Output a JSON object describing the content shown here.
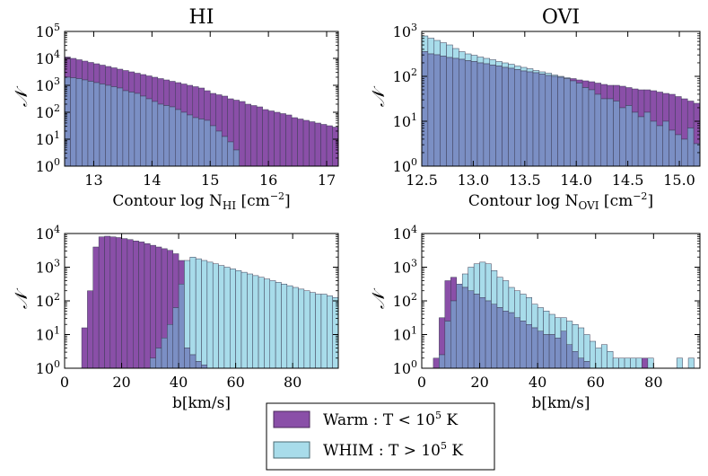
{
  "figure": {
    "legend": {
      "entries": [
        {
          "name": "Warm",
          "label": "Warm : T < 10",
          "exp": "5",
          "unit": " K",
          "color": "#8a4fa8",
          "stroke": "#4a2a5a"
        },
        {
          "name": "WHIM",
          "label": "WHIM : T > 10",
          "exp": "5",
          "unit": " K",
          "color": "#a8dcea",
          "stroke": "#4a6a72"
        }
      ]
    },
    "overlap_color": "#7b8fc4"
  },
  "chart_data": [
    {
      "id": "hi-column",
      "type": "bar",
      "title": "HI",
      "xlabel": "Contour log N",
      "xlabel_sub": "HI",
      "xlabel_unit": " [cm",
      "xlabel_unit_exp": "−2",
      "xlabel_close": "]",
      "ylabel": "𝒩",
      "yscale": "log",
      "xlim": [
        12.5,
        17.2
      ],
      "ylim_exp": [
        0,
        5
      ],
      "xticks": [
        13,
        14,
        15,
        16,
        17
      ],
      "ytick_exps": [
        0,
        1,
        2,
        3,
        4,
        5
      ],
      "bins": {
        "start": 12.5,
        "width": 0.1
      },
      "series": [
        {
          "name": "Warm",
          "log_values": [
            4.05,
            4.0,
            3.95,
            3.9,
            3.85,
            3.8,
            3.75,
            3.7,
            3.65,
            3.6,
            3.55,
            3.5,
            3.45,
            3.4,
            3.35,
            3.3,
            3.25,
            3.2,
            3.15,
            3.1,
            3.05,
            3.0,
            2.95,
            2.9,
            2.8,
            2.7,
            2.65,
            2.6,
            2.5,
            2.45,
            2.4,
            2.3,
            2.25,
            2.2,
            2.1,
            2.05,
            2.0,
            1.95,
            1.9,
            1.8,
            1.75,
            1.7,
            1.65,
            1.6,
            1.55,
            1.5,
            1.45
          ]
        },
        {
          "name": "WHIM",
          "log_values": [
            3.3,
            3.28,
            3.25,
            3.2,
            3.15,
            3.1,
            3.05,
            3.0,
            2.95,
            2.9,
            2.8,
            2.75,
            2.7,
            2.6,
            2.5,
            2.4,
            2.3,
            2.25,
            2.2,
            2.1,
            2.0,
            1.9,
            1.8,
            1.75,
            1.7,
            1.5,
            1.3,
            1.1,
            0.9,
            0.6,
            0.0,
            0.0,
            0.0,
            0.0,
            0.0,
            0.0,
            0.0,
            0.0,
            0.0,
            0.0,
            0.0,
            0.0,
            0.0,
            0.0,
            0.0,
            0.0,
            0.0
          ]
        }
      ]
    },
    {
      "id": "ovi-column",
      "type": "bar",
      "title": "OVI",
      "xlabel": "Contour log N",
      "xlabel_sub": "OVI",
      "xlabel_unit": " [cm",
      "xlabel_unit_exp": "−2",
      "xlabel_close": "]",
      "ylabel": "𝒩",
      "yscale": "log",
      "xlim": [
        12.5,
        15.2
      ],
      "ylim_exp": [
        0,
        3
      ],
      "xticks": [
        "12.5",
        "13.0",
        "13.5",
        "14.0",
        "14.5",
        "15.0"
      ],
      "ytick_exps": [
        0,
        1,
        2,
        3
      ],
      "bins": {
        "start": 12.5,
        "width": 0.06
      },
      "series": [
        {
          "name": "Warm",
          "log_values": [
            2.55,
            2.5,
            2.48,
            2.45,
            2.42,
            2.4,
            2.38,
            2.35,
            2.33,
            2.3,
            2.28,
            2.25,
            2.23,
            2.2,
            2.18,
            2.15,
            2.12,
            2.1,
            2.08,
            2.05,
            2.02,
            2.0,
            1.98,
            1.95,
            1.95,
            1.92,
            1.9,
            1.88,
            1.85,
            1.82,
            1.8,
            1.8,
            1.78,
            1.75,
            1.72,
            1.7,
            1.7,
            1.68,
            1.65,
            1.62,
            1.6,
            1.55,
            1.5,
            1.45,
            1.4,
            1.35
          ]
        },
        {
          "name": "WHIM",
          "log_values": [
            2.9,
            2.85,
            2.8,
            2.75,
            2.7,
            2.62,
            2.55,
            2.5,
            2.47,
            2.43,
            2.4,
            2.37,
            2.33,
            2.3,
            2.27,
            2.23,
            2.2,
            2.17,
            2.13,
            2.1,
            2.07,
            2.03,
            2.0,
            1.97,
            1.9,
            1.85,
            1.75,
            1.7,
            1.6,
            1.5,
            1.5,
            1.45,
            1.3,
            1.35,
            1.2,
            1.1,
            1.2,
            1.0,
            0.9,
            1.0,
            0.8,
            0.7,
            0.6,
            0.85,
            0.5,
            0.3
          ]
        }
      ]
    },
    {
      "id": "hi-b",
      "type": "bar",
      "title": "",
      "xlabel": "b[km/s]",
      "ylabel": "𝒩",
      "yscale": "log",
      "xlim": [
        0,
        96
      ],
      "ylim_exp": [
        0,
        4
      ],
      "xticks": [
        0,
        20,
        40,
        60,
        80
      ],
      "ytick_exps": [
        0,
        1,
        2,
        3,
        4
      ],
      "bins": {
        "start": 6,
        "width": 2
      },
      "series": [
        {
          "name": "Warm",
          "log_values": [
            1.2,
            2.3,
            3.6,
            3.9,
            3.92,
            3.9,
            3.88,
            3.85,
            3.82,
            3.78,
            3.75,
            3.7,
            3.65,
            3.6,
            3.55,
            3.5,
            3.4,
            3.2,
            0.6,
            0.4,
            0.2,
            0.1,
            0.0,
            0.0,
            0.0,
            0.0,
            0.0,
            0.0,
            0.0,
            0.0,
            0.0,
            0.0,
            0.0,
            0.0,
            0.0,
            0.0,
            0.0,
            0.0,
            0.0,
            0.0,
            0.0,
            0.0,
            0.0,
            0.0,
            0.0
          ]
        },
        {
          "name": "WHIM",
          "log_values": [
            0,
            0,
            0,
            0,
            0,
            0,
            0,
            0,
            0,
            0,
            0,
            0,
            0.3,
            0.6,
            0.9,
            1.3,
            1.8,
            2.5,
            3.2,
            3.3,
            3.25,
            3.2,
            3.15,
            3.1,
            3.05,
            3.0,
            2.95,
            2.9,
            2.85,
            2.8,
            2.75,
            2.7,
            2.65,
            2.6,
            2.55,
            2.5,
            2.45,
            2.4,
            2.35,
            2.3,
            2.25,
            2.2,
            2.2,
            2.15,
            2.1
          ]
        }
      ]
    },
    {
      "id": "ovi-b",
      "type": "bar",
      "title": "",
      "xlabel": "b[km/s]",
      "ylabel": "𝒩",
      "yscale": "log",
      "xlim": [
        0,
        96
      ],
      "ylim_exp": [
        0,
        4
      ],
      "xticks": [
        0,
        20,
        40,
        60,
        80
      ],
      "ytick_exps": [
        0,
        1,
        2,
        3,
        4
      ],
      "bins": {
        "start": 4,
        "width": 2
      },
      "series": [
        {
          "name": "Warm",
          "log_values": [
            0.3,
            1.5,
            2.6,
            2.7,
            2.5,
            2.4,
            2.3,
            2.2,
            2.1,
            2.0,
            1.9,
            1.8,
            1.7,
            1.65,
            1.5,
            1.4,
            1.3,
            1.2,
            1.1,
            1.0,
            1.0,
            0.9,
            1.1,
            0.7,
            0.5,
            0.3,
            0.2,
            0.0,
            0.0,
            0.0,
            0.0,
            0.0,
            0.0,
            0.0,
            0.0,
            0.0,
            0.3,
            0.0,
            0.0,
            0.0,
            0.0,
            0.0,
            0.0,
            0.0,
            0.0
          ]
        },
        {
          "name": "WHIM",
          "log_values": [
            0,
            0.4,
            1.4,
            2.0,
            2.5,
            2.8,
            3.0,
            3.1,
            3.15,
            3.1,
            2.9,
            2.7,
            2.6,
            2.4,
            2.3,
            2.2,
            2.1,
            1.9,
            1.8,
            1.7,
            1.6,
            1.5,
            1.5,
            1.4,
            1.3,
            1.2,
            1.0,
            0.8,
            0.6,
            0.7,
            0.5,
            0.3,
            0.3,
            0.3,
            0.3,
            0.3,
            0,
            0.3,
            0,
            0,
            0,
            0,
            0.3,
            0,
            0.3
          ]
        }
      ]
    }
  ]
}
